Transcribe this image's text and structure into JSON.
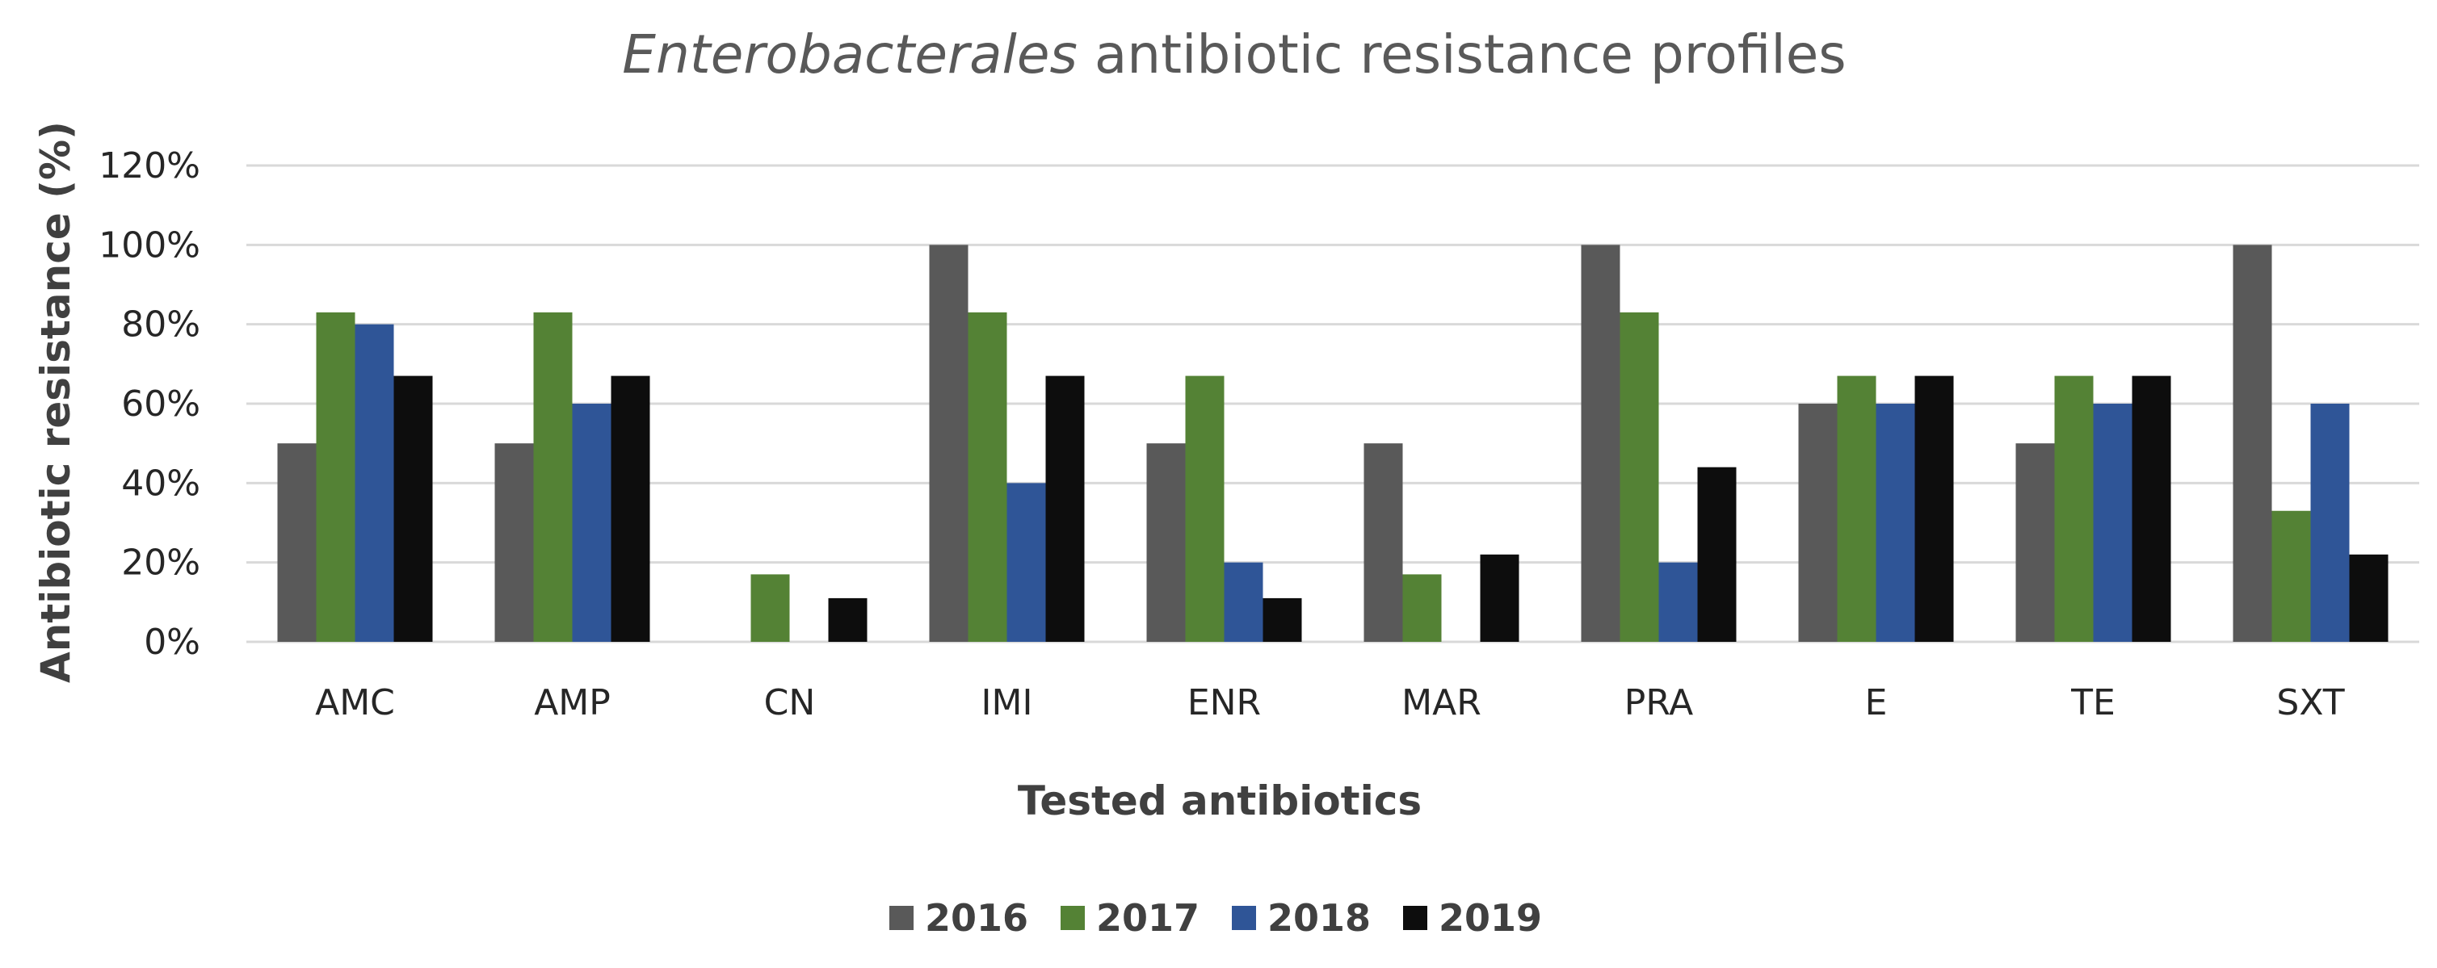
{
  "chart_data": {
    "type": "bar",
    "title": {
      "italic": "Enterobacterales",
      "rest": " antibiotic resistance profiles"
    },
    "xlabel": "Tested antibiotics",
    "ylabel": "Antibiotic resistance (%)",
    "ylim": [
      0,
      120
    ],
    "yticks": [
      0,
      20,
      40,
      60,
      80,
      100,
      120
    ],
    "ytick_labels": [
      "0%",
      "20%",
      "40%",
      "60%",
      "80%",
      "100%",
      "120%"
    ],
    "grid": true,
    "legend_position": "bottom",
    "categories": [
      "AMC",
      "AMP",
      "CN",
      "IMI",
      "ENR",
      "MAR",
      "PRA",
      "E",
      "TE",
      "SXT"
    ],
    "series": [
      {
        "name": "2016",
        "color": "#595959",
        "values": [
          50,
          50,
          0,
          100,
          50,
          50,
          100,
          60,
          50,
          100
        ]
      },
      {
        "name": "2017",
        "color": "#548235",
        "values": [
          83,
          83,
          17,
          83,
          67,
          17,
          83,
          67,
          67,
          33
        ]
      },
      {
        "name": "2018",
        "color": "#2f5597",
        "values": [
          80,
          60,
          0,
          40,
          20,
          0,
          20,
          60,
          60,
          60
        ]
      },
      {
        "name": "2019",
        "color": "#0d0d0d",
        "values": [
          67,
          67,
          11,
          67,
          11,
          22,
          44,
          67,
          67,
          22
        ]
      }
    ]
  }
}
